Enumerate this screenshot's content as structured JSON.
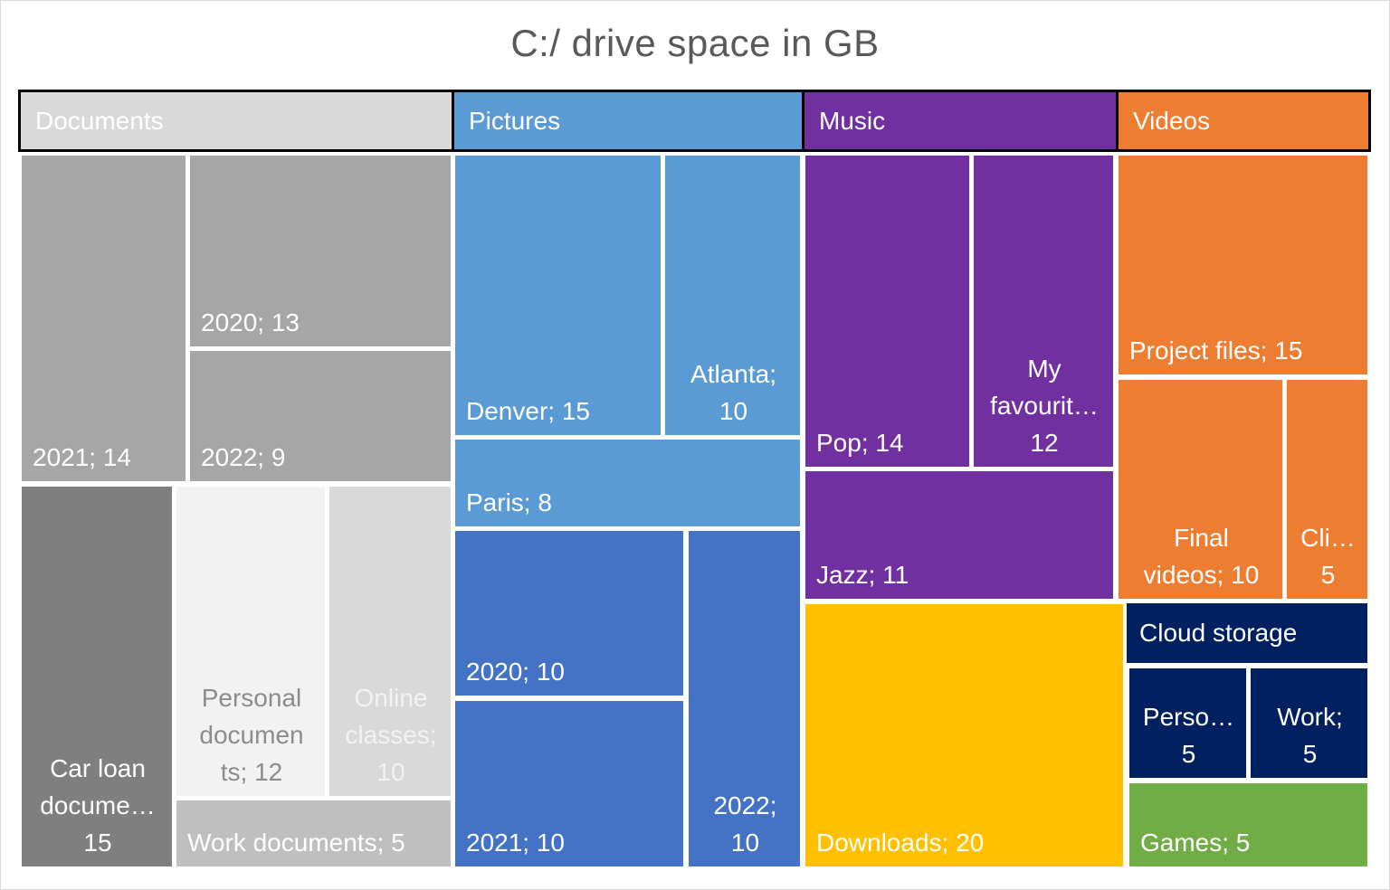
{
  "chart_data": {
    "type": "treemap",
    "title": "C:/ drive space in GB",
    "unit": "GB",
    "groups": [
      {
        "name": "Documents",
        "color": "#d9d9d9",
        "children": [
          {
            "name": "2021",
            "value": 14,
            "label": "2021; 14",
            "color": "#a6a6a6"
          },
          {
            "name": "2020",
            "value": 13,
            "label": "2020; 13",
            "color": "#a6a6a6"
          },
          {
            "name": "2022",
            "value": 9,
            "label": "2022; 9",
            "color": "#a6a6a6"
          },
          {
            "name": "Car loan documents",
            "value": 15,
            "label": "Car loan\ndocume…\n15",
            "color": "#7f7f7f"
          },
          {
            "name": "Personal documents",
            "value": 12,
            "label": "Personal\ndocumen\nts; 12",
            "color": "#f2f2f2"
          },
          {
            "name": "Online classes",
            "value": 10,
            "label": "Online\nclasses;\n10",
            "color": "#d9d9d9"
          },
          {
            "name": "Work documents",
            "value": 5,
            "label": "Work documents; 5",
            "color": "#bfbfbf"
          }
        ]
      },
      {
        "name": "Pictures",
        "color": "#5b9bd5",
        "children": [
          {
            "name": "Denver",
            "value": 15,
            "label": "Denver; 15",
            "color": "#5b9bd5"
          },
          {
            "name": "Atlanta",
            "value": 10,
            "label": "Atlanta;\n10",
            "color": "#5b9bd5"
          },
          {
            "name": "Paris",
            "value": 8,
            "label": "Paris; 8",
            "color": "#5b9bd5"
          },
          {
            "name": "2020",
            "value": 10,
            "label": "2020; 10",
            "color": "#4472c4"
          },
          {
            "name": "2021",
            "value": 10,
            "label": "2021; 10",
            "color": "#4472c4"
          },
          {
            "name": "2022",
            "value": 10,
            "label": "2022;\n10",
            "color": "#4472c4"
          }
        ]
      },
      {
        "name": "Music",
        "color": "#7030a0",
        "children": [
          {
            "name": "Pop",
            "value": 14,
            "label": "Pop; 14",
            "color": "#7030a0"
          },
          {
            "name": "My favourites",
            "value": 12,
            "label": "My\nfavourit…\n12",
            "color": "#7030a0"
          },
          {
            "name": "Jazz",
            "value": 11,
            "label": "Jazz; 11",
            "color": "#7030a0"
          }
        ]
      },
      {
        "name": "Downloads",
        "color": "#ffc000",
        "children": [
          {
            "name": "Downloads",
            "value": 20,
            "label": "Downloads; 20",
            "color": "#ffc000"
          }
        ]
      },
      {
        "name": "Videos",
        "color": "#ed7d31",
        "children": [
          {
            "name": "Project files",
            "value": 15,
            "label": "Project files; 15",
            "color": "#ed7d31"
          },
          {
            "name": "Final videos",
            "value": 10,
            "label": "Final\nvideos; 10",
            "color": "#ed7d31"
          },
          {
            "name": "Clips",
            "value": 5,
            "label": "Cli…\n5",
            "color": "#ed7d31"
          }
        ]
      },
      {
        "name": "Cloud storage",
        "color": "#002060",
        "children": [
          {
            "name": "Personal",
            "value": 5,
            "label": "Perso…\n5",
            "color": "#002060"
          },
          {
            "name": "Work",
            "value": 5,
            "label": "Work;\n5",
            "color": "#002060"
          }
        ]
      },
      {
        "name": "Games",
        "color": "#70ad47",
        "children": [
          {
            "name": "Games",
            "value": 5,
            "label": "Games; 5",
            "color": "#70ad47"
          }
        ]
      }
    ]
  }
}
